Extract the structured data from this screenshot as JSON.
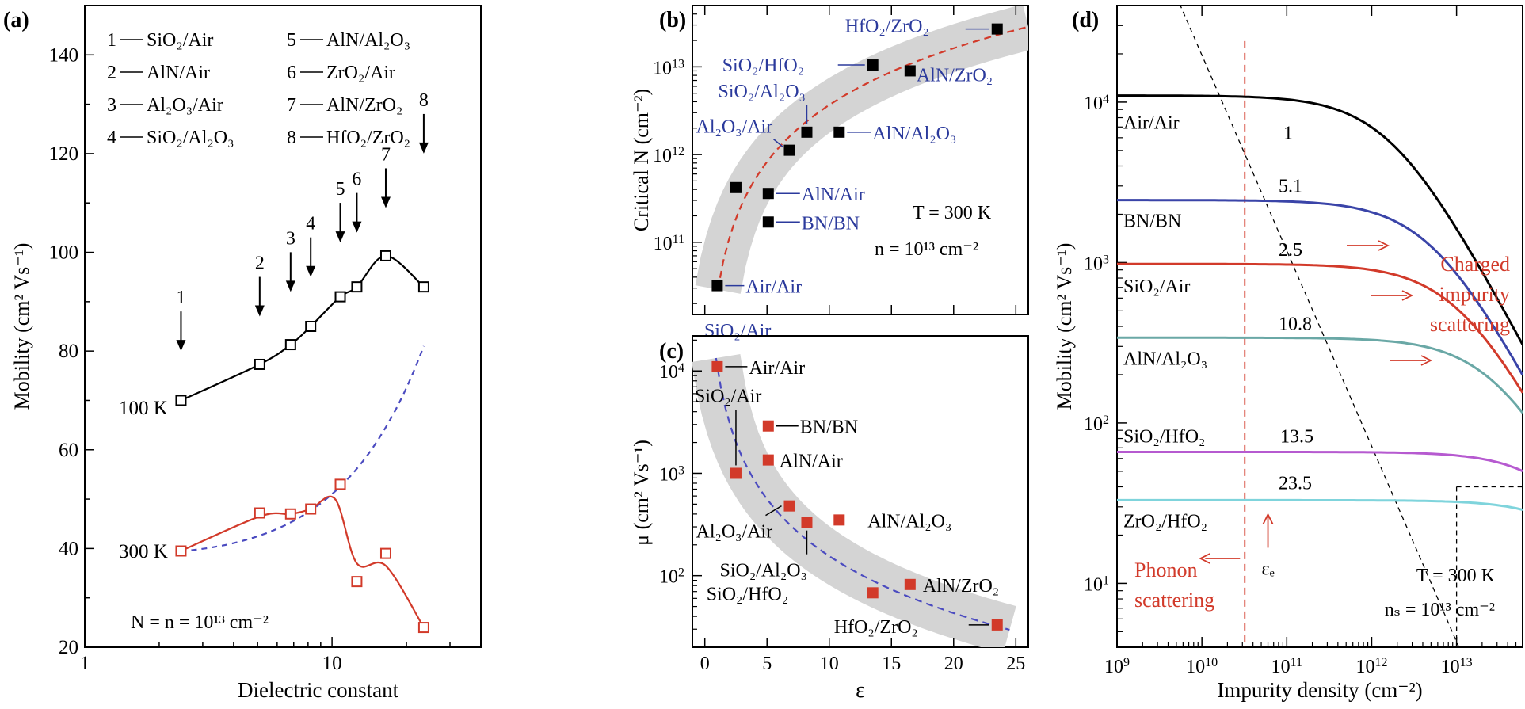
{
  "colors": {
    "black": "#000000",
    "red": "#d23a2a",
    "blue": "#3a3fa8",
    "blue_text": "#2b3a9c",
    "band": "#d4d4d4",
    "dash_blue": "#4b4bc0",
    "dash_red": "#d23a2a"
  },
  "chart_data": [
    {
      "panel": "(a)",
      "type": "line",
      "xscale": "log",
      "xlim": [
        1,
        40
      ],
      "ylim": [
        20,
        150
      ],
      "xlabel": "Dielectric constant",
      "ylabel": "Mobility (cm² Vs⁻¹)",
      "xticks": [
        {
          "v": 1,
          "label": "1"
        },
        {
          "v": 10,
          "label": "10"
        }
      ],
      "yticks": [
        20,
        40,
        60,
        80,
        100,
        120,
        140
      ],
      "legend": [
        {
          "n": "1",
          "text": "SiO₂/Air"
        },
        {
          "n": "2",
          "text": "AlN/Air"
        },
        {
          "n": "3",
          "text": "Al₂O₃/Air"
        },
        {
          "n": "4",
          "text": "SiO₂/Al₂O₃"
        },
        {
          "n": "5",
          "text": "AlN/Al₂O₃"
        },
        {
          "n": "6",
          "text": "ZrO₂/Air"
        },
        {
          "n": "7",
          "text": "AlN/ZrO₂"
        },
        {
          "n": "8",
          "text": "HfO₂/ZrO₂"
        }
      ],
      "arrows": [
        {
          "label": "1",
          "x": 2.45,
          "y": 80
        },
        {
          "label": "2",
          "x": 5.1,
          "y": 87
        },
        {
          "label": "3",
          "x": 6.8,
          "y": 92
        },
        {
          "label": "4",
          "x": 8.2,
          "y": 95
        },
        {
          "label": "5",
          "x": 10.8,
          "y": 102
        },
        {
          "label": "6",
          "x": 12.6,
          "y": 104
        },
        {
          "label": "7",
          "x": 16.5,
          "y": 109
        },
        {
          "label": "8",
          "x": 23.5,
          "y": 120
        }
      ],
      "series": [
        {
          "name": "100 K",
          "x": [
            2.45,
            5.1,
            6.8,
            8.2,
            10.8,
            12.6,
            16.5,
            23.5
          ],
          "y": [
            70,
            77.3,
            81.3,
            85,
            91,
            93,
            99.3,
            93
          ]
        },
        {
          "name": "300 K",
          "x": [
            2.45,
            5.1,
            6.8,
            8.2,
            10.8,
            12.6,
            16.5,
            23.5
          ],
          "y": [
            39.5,
            47.2,
            47,
            48,
            53,
            33.3,
            39,
            24
          ]
        }
      ],
      "annotation": "N = n = 10¹³ cm⁻²"
    },
    {
      "panel": "(b)",
      "type": "scatter",
      "xlim": [
        -1,
        26
      ],
      "ylog": true,
      "ylim": [
        15000000000.0,
        50000000000000.0
      ],
      "ylabel": "Critical N (cm⁻²)",
      "points": [
        {
          "name": "Air/Air",
          "x": 1,
          "y": 32000000000.0
        },
        {
          "name": "SiO₂/Air",
          "x": 2.5,
          "y": 420000000000.0
        },
        {
          "name": "BN/BN",
          "x": 5.1,
          "y": 170000000000.0
        },
        {
          "name": "AlN/Air",
          "x": 5.1,
          "y": 360000000000.0
        },
        {
          "name": "Al₂O₃/Air",
          "x": 6.8,
          "y": 1120000000000.0
        },
        {
          "name": "SiO₂/Al₂O₃",
          "x": 8.2,
          "y": 1800000000000.0
        },
        {
          "name": "AlN/Al₂O₃",
          "x": 10.8,
          "y": 1800000000000.0
        },
        {
          "name": "SiO₂/HfO₂",
          "x": 13.5,
          "y": 10500000000000.0
        },
        {
          "name": "AlN/ZrO₂",
          "x": 16.5,
          "y": 9000000000000.0
        },
        {
          "name": "HfO₂/ZrO₂",
          "x": 23.5,
          "y": 27000000000000.0
        }
      ],
      "annotations": [
        "T = 300 K",
        "n = 10¹³ cm⁻²"
      ]
    },
    {
      "panel": "(c)",
      "type": "scatter",
      "xlim": [
        -1,
        26
      ],
      "ylog": true,
      "ylim": [
        20.0,
        22000.0
      ],
      "xlabel": "ε",
      "ylabel": "μ (cm² Vs⁻¹)",
      "xticks": [
        0,
        5,
        10,
        15,
        20,
        25
      ],
      "points": [
        {
          "name": "Air/Air",
          "x": 1,
          "y": 11000
        },
        {
          "name": "SiO₂/Air",
          "x": 2.5,
          "y": 1000
        },
        {
          "name": "BN/BN",
          "x": 5.1,
          "y": 2900
        },
        {
          "name": "AlN/Air",
          "x": 5.1,
          "y": 1350
        },
        {
          "name": "Al₂O₃/Air",
          "x": 6.8,
          "y": 480
        },
        {
          "name": "SiO₂/Al₂O₃",
          "x": 8.2,
          "y": 330
        },
        {
          "name": "AlN/Al₂O₃",
          "x": 10.8,
          "y": 350
        },
        {
          "name": "SiO₂/HfO₂",
          "x": 13.5,
          "y": 68
        },
        {
          "name": "AlN/ZrO₂",
          "x": 16.5,
          "y": 82
        },
        {
          "name": "HfO₂/ZrO₂",
          "x": 23.5,
          "y": 33
        }
      ]
    },
    {
      "panel": "(d)",
      "type": "line",
      "xlog": true,
      "ylog": true,
      "xlim": [
        1000000000.0,
        60000000000000.0
      ],
      "ylim": [
        4,
        40000.0
      ],
      "xlabel": "Impurity density (cm⁻²)",
      "ylabel": "Mobility (cm² Vs⁻¹)",
      "xticks": [
        {
          "e": 9
        },
        {
          "e": 10
        },
        {
          "e": 11
        },
        {
          "e": 12
        },
        {
          "e": 13
        }
      ],
      "yticks": [
        {
          "e": 1
        },
        {
          "e": 2
        },
        {
          "e": 3
        },
        {
          "e": 4
        }
      ],
      "series": [
        {
          "name": "Air/Air",
          "eps": "1",
          "mu0": 11000,
          "color": "#000000"
        },
        {
          "name": "BN/BN",
          "eps": "5.1",
          "mu0": 2450,
          "color": "#3a44a8"
        },
        {
          "name": "SiO₂/Air",
          "eps": "2.5",
          "mu0": 980,
          "color": "#d23a2a"
        },
        {
          "name": "AlN/Al₂O₃",
          "eps": "10.8",
          "mu0": 340,
          "color": "#6aa8a6"
        },
        {
          "name": "SiO₂/HfO₂",
          "eps": "13.5",
          "mu0": 66,
          "color": "#b65ad0"
        },
        {
          "name": "ZrO₂/HfO₂",
          "eps": "23.5",
          "mu0": 33,
          "color": "#7fd4dc"
        }
      ],
      "annotations": {
        "charged": [
          "Charged",
          "impurity",
          "scattering"
        ],
        "phonon": [
          "Phonon",
          "scattering"
        ],
        "eps_e": "εₑ",
        "temp": "T = 300 K",
        "ns": "nₛ = 10¹³ cm⁻²"
      }
    }
  ]
}
